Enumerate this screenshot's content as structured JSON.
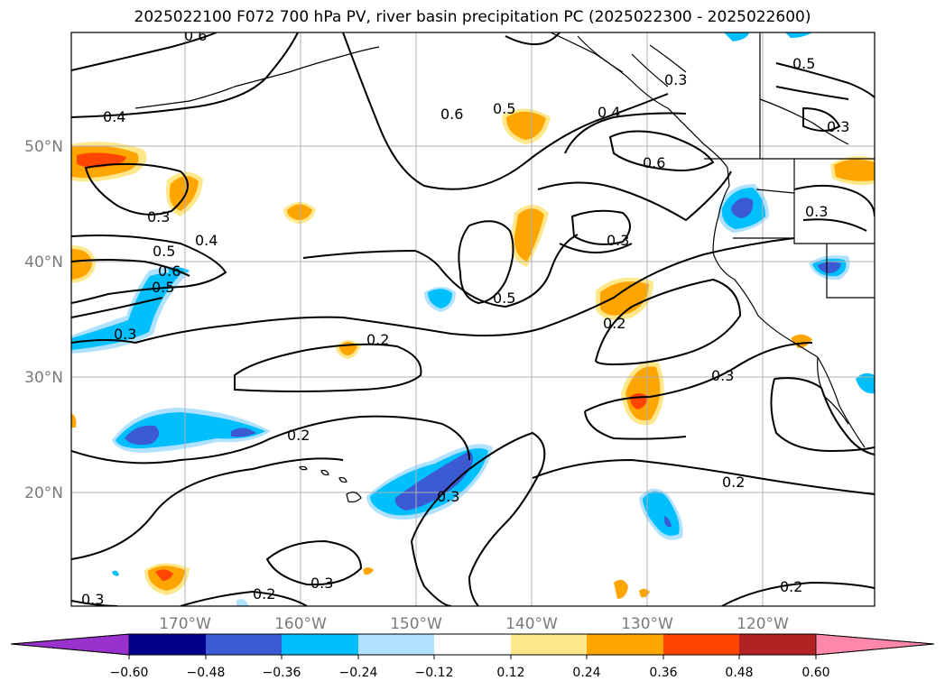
{
  "title": "2025022100 F072 700 hPa PV, river basin precipitation PC (2025022300 - 2025022600)",
  "lat_labels": [
    "50°N",
    "40°N",
    "30°N",
    "20°N"
  ],
  "lon_labels": [
    "170°W",
    "160°W",
    "150°W",
    "140°W",
    "130°W",
    "120°W"
  ],
  "colorbar": {
    "colors": [
      "#9932cc",
      "#00008b",
      "#3c5ad2",
      "#00bfff",
      "#b0e2ff",
      "#ffffff",
      "#ffe88c",
      "#ffa500",
      "#ff4500",
      "#b22222",
      "#ff88aa"
    ],
    "tick_labels": [
      "−0.60",
      "−0.48",
      "−0.36",
      "−0.24",
      "−0.12",
      "0.12",
      "0.24",
      "0.36",
      "0.48",
      "0.60"
    ]
  },
  "contour_labels": [
    "0.6",
    "0.4",
    "0.3",
    "0.5",
    "0.4",
    "0.6",
    "0.5",
    "0.3",
    "0.6",
    "0.3",
    "0.5",
    "0.4",
    "0.6",
    "0.3",
    "0.5",
    "0.3",
    "0.5",
    "0.2",
    "0.2",
    "0.3",
    "0.2",
    "0.3",
    "0.2",
    "0.3",
    "0.3",
    "0.2",
    "0.2",
    "0.3"
  ]
}
